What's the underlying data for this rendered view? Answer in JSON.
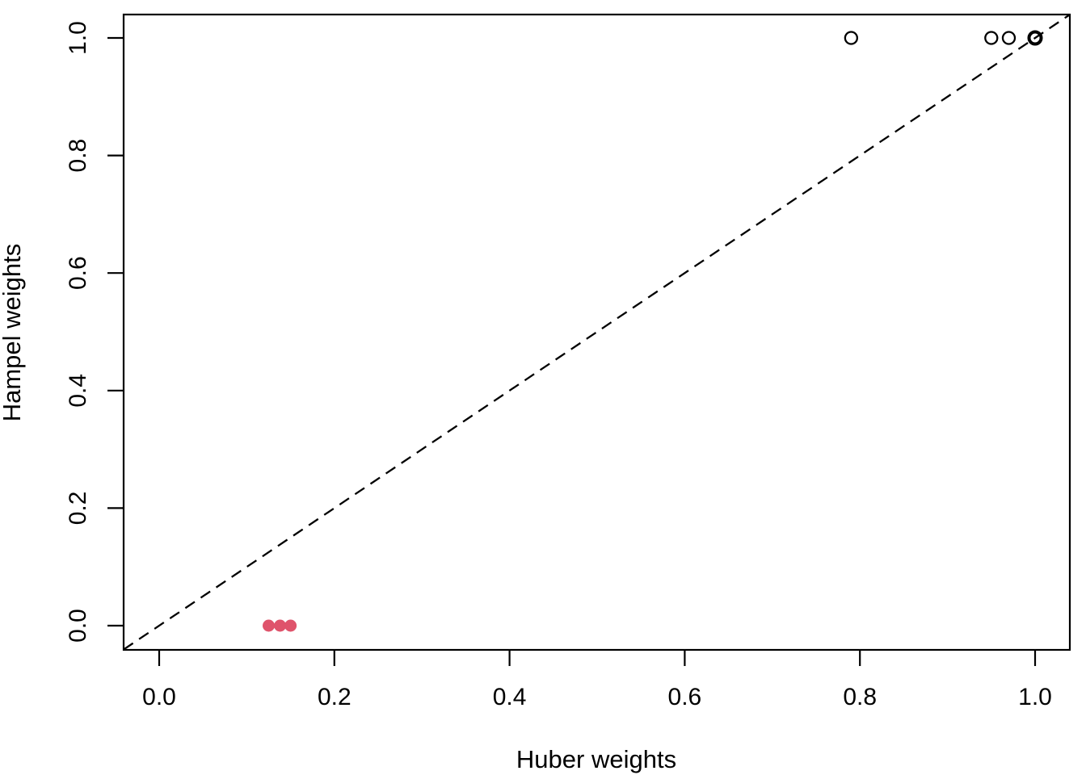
{
  "figure": {
    "background": "#ffffff",
    "foreground": "#000000",
    "accent_red": "#DF536B"
  },
  "chart_data": {
    "type": "scatter",
    "title": "",
    "xlabel": "Huber weights",
    "ylabel": "Hampel weights",
    "xlim": [
      0.0,
      1.0
    ],
    "ylim": [
      0.0,
      1.0
    ],
    "xticks": [
      0.0,
      0.2,
      0.4,
      0.6,
      0.8,
      1.0
    ],
    "xtick_labels": [
      "0.0",
      "0.2",
      "0.4",
      "0.6",
      "0.8",
      "1.0"
    ],
    "yticks": [
      0.0,
      0.2,
      0.4,
      0.6,
      0.8,
      1.0
    ],
    "ytick_labels": [
      "0.0",
      "0.2",
      "0.4",
      "0.6",
      "0.8",
      "1.0"
    ],
    "grid": false,
    "legend": null,
    "reference_line": {
      "type": "identity",
      "equation": "y = x",
      "style": "dashed",
      "color": "#000000"
    },
    "series": [
      {
        "name": "open-circle-points",
        "marker": "open-circle",
        "color": "#000000",
        "points": [
          [
            0.79,
            1.0
          ],
          [
            0.95,
            1.0
          ],
          [
            0.97,
            1.0
          ]
        ]
      },
      {
        "name": "open-circle-overplotted-point",
        "marker": "open-circle-bold",
        "color": "#000000",
        "points": [
          [
            1.0,
            1.0
          ]
        ]
      },
      {
        "name": "red-filled-points",
        "marker": "filled-circle",
        "color": "#DF536B",
        "points": [
          [
            0.125,
            0.0
          ],
          [
            0.138,
            0.0
          ],
          [
            0.15,
            0.0
          ]
        ]
      }
    ]
  }
}
